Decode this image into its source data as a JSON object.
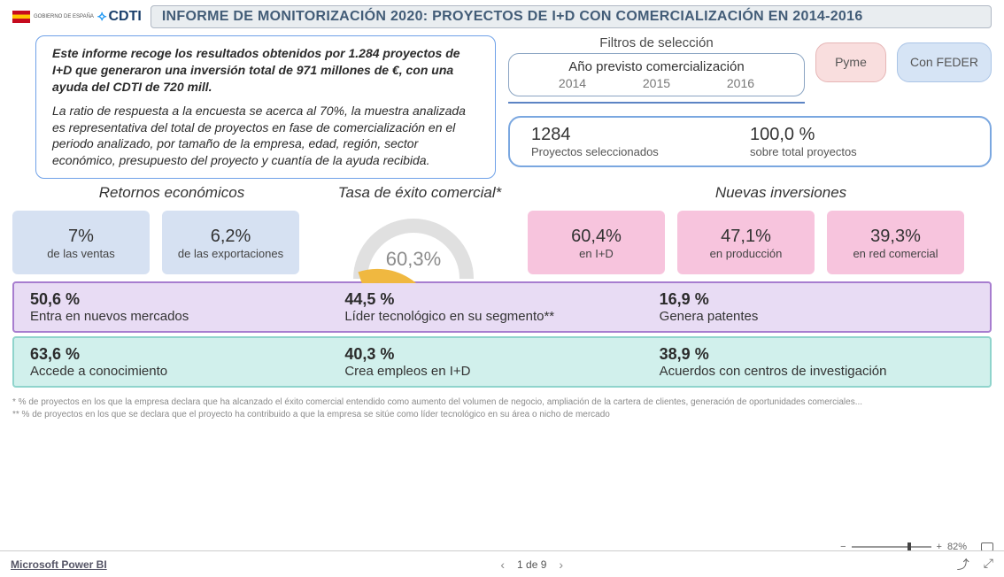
{
  "header": {
    "gov_label": "GOBIERNO DE ESPAÑA",
    "cdti_label": "CDTI",
    "title": "INFORME DE MONITORIZACIÓN 2020: PROYECTOS DE I+D CON COMERCIALIZACIÓN EN 2014-2016"
  },
  "intro": {
    "p1": "Este informe recoge los resultados obtenidos por 1.284 proyectos de I+D que generaron una inversión total de 971 millones de €, con una ayuda del CDTI de 720 mill.",
    "p2": "La ratio de respuesta a la encuesta se acerca al 70%, la muestra analizada es representativa del total de proyectos en fase de comercialización en el periodo analizado, por tamaño de la empresa, edad, región, sector económico, presupuesto del proyecto y cuantía de la ayuda recibida."
  },
  "filters": {
    "title": "Filtros de selección",
    "year_title": "Año previsto comercialización",
    "years": [
      "2014",
      "2015",
      "2016"
    ],
    "pyme": "Pyme",
    "feder": "Con FEDER"
  },
  "summary": {
    "count_value": "1284",
    "count_label": "Proyectos seleccionados",
    "pct_value": "100,0 %",
    "pct_label": "sobre total proyectos"
  },
  "mid_titles": {
    "returns": "Retornos económicos",
    "success": "Tasa de éxito comercial*",
    "invest": "Nuevas inversiones"
  },
  "returns": [
    {
      "value": "7%",
      "label": "de las ventas",
      "color": "#d6e1f2"
    },
    {
      "value": "6,2%",
      "label": "de las exportaciones",
      "color": "#d6e1f2"
    }
  ],
  "gauge": {
    "value_text": "60,3%",
    "fraction": 0.603,
    "track_color": "#e0e0e0",
    "fill_color": "#f0b840",
    "stroke_width": 16
  },
  "investments": [
    {
      "value": "60,4%",
      "label": "en I+D",
      "color": "#f7c4dd"
    },
    {
      "value": "47,1%",
      "label": "en producción",
      "color": "#f7c4dd"
    },
    {
      "value": "39,3%",
      "label": "en red comercial",
      "color": "#f7c4dd"
    }
  ],
  "band_purple": [
    {
      "value": "50,6 %",
      "label": "Entra en nuevos mercados"
    },
    {
      "value": "44,5 %",
      "label": "Líder tecnológico en su segmento**"
    },
    {
      "value": "16,9 %",
      "label": "Genera patentes"
    }
  ],
  "band_cyan": [
    {
      "value": "63,6 %",
      "label": "Accede a conocimiento"
    },
    {
      "value": "40,3 %",
      "label": "Crea empleos en I+D"
    },
    {
      "value": "38,9 %",
      "label": "Acuerdos con centros de investigación"
    }
  ],
  "footnotes": {
    "f1": "* % de proyectos en los que la empresa declara que ha alcanzado el éxito comercial entendido como aumento del volumen de negocio, ampliación de la cartera de clientes, generación de oportunidades comerciales...",
    "f2": "** % de proyectos en los que se declara que el proyecto ha contribuido a que la empresa se sitúe como líder tecnológico en su área o nicho de mercado"
  },
  "zoom": {
    "label": "82%",
    "thumb_pos_pct": 70
  },
  "footer": {
    "powerbi": "Microsoft Power BI",
    "pager": "1 de 9"
  },
  "colors": {
    "band_purple_bg": "#e8dcf4",
    "band_purple_border": "#a77dcf",
    "band_cyan_bg": "#d1f0ec",
    "band_cyan_border": "#8fd4cc"
  }
}
